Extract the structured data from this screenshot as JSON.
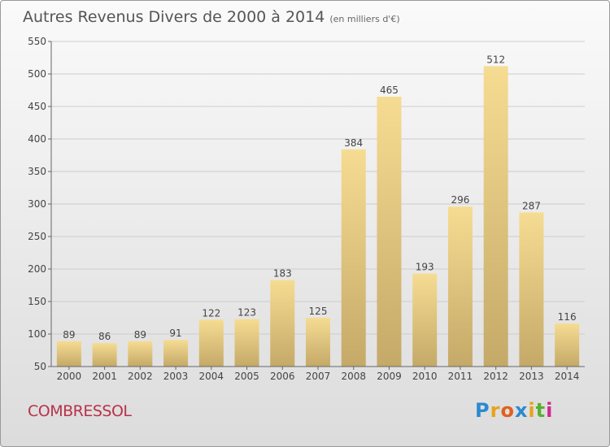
{
  "title": "Autres Revenus Divers de 2000 à 2014",
  "subtitle": "(en milliers d'€)",
  "town": "COMBRESSOL",
  "logo": {
    "letters": [
      "P",
      "r",
      "o",
      "x",
      "i",
      "t",
      "i"
    ],
    "colors": [
      "#2a8ad0",
      "#e8a21a",
      "#e06020",
      "#2a8ad0",
      "#e8a21a",
      "#58b030",
      "#d02890"
    ]
  },
  "colors": {
    "bar_light": "#f6dc92",
    "bar_dark": "#c4a968",
    "grid": "#cccccc"
  },
  "chart_data": {
    "type": "bar",
    "title": "Autres Revenus Divers de 2000 à 2014",
    "subtitle": "(en milliers d'€)",
    "categories": [
      "2000",
      "2001",
      "2002",
      "2003",
      "2004",
      "2005",
      "2006",
      "2007",
      "2008",
      "2009",
      "2010",
      "2011",
      "2012",
      "2013",
      "2014"
    ],
    "values": [
      89,
      86,
      89,
      91,
      122,
      123,
      183,
      125,
      384,
      465,
      193,
      296,
      512,
      287,
      116
    ],
    "ylim": [
      50,
      550
    ],
    "yticks": [
      50,
      100,
      150,
      200,
      250,
      300,
      350,
      400,
      450,
      500,
      550
    ],
    "grid": true
  }
}
